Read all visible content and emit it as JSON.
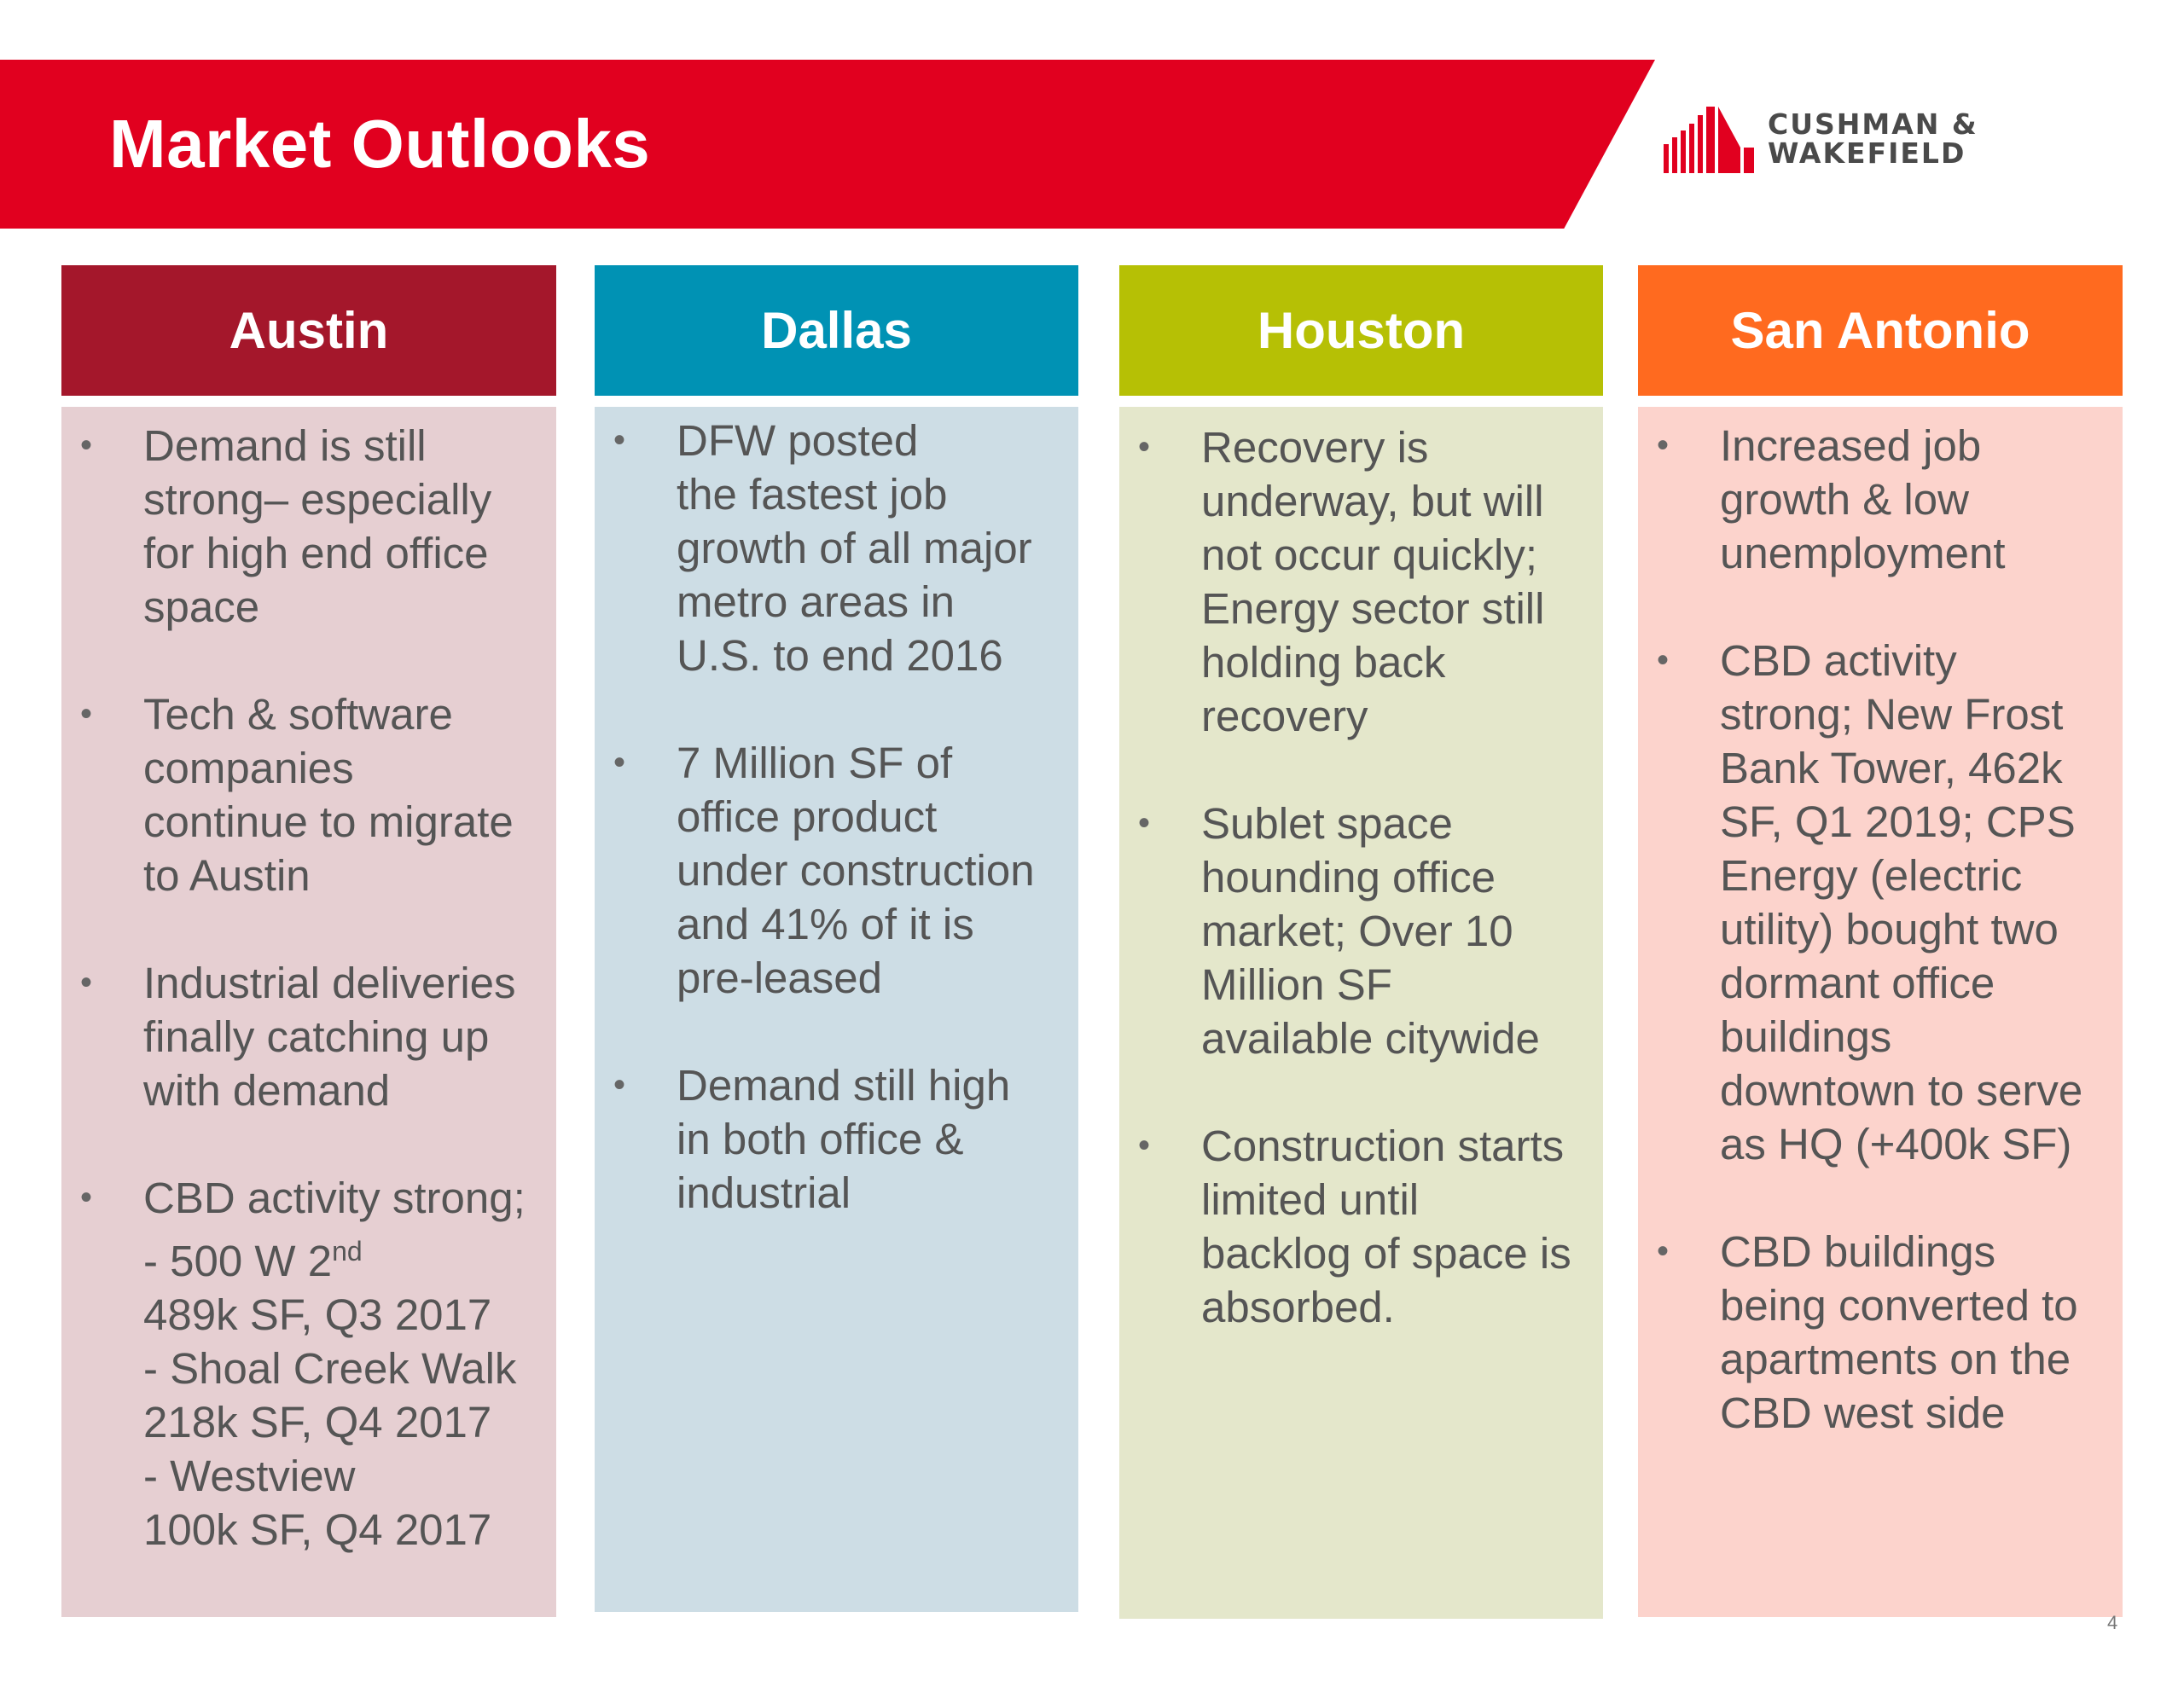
{
  "header": {
    "title": "Market Outlooks",
    "brand_color": "#e1001f"
  },
  "logo": {
    "line1": "CUSHMAN &",
    "line2": "WAKEFIELD",
    "icon": "building-bars-icon"
  },
  "columns": [
    {
      "title": "Austin",
      "header_color": "#a4172b",
      "body_color": "#e6cfd2",
      "bullets": [
        "Demand is still\nstrong– especially\nfor high end office\nspace",
        "Tech & software\ncompanies\ncontinue to migrate\nto Austin",
        "Industrial deliveries\nfinally catching up\nwith demand",
        "CBD activity strong;\n- 500 W 2nd\n489k SF, Q3 2017\n- Shoal Creek Walk\n218k SF, Q4 2017\n- Westview\n100k SF, Q4 2017"
      ]
    },
    {
      "title": "Dallas",
      "header_color": "#0092b4",
      "body_color": "#cddde5",
      "bullets": [
        "DFW posted\nthe fastest job\ngrowth of all major\nmetro areas in\nU.S. to end 2016",
        "7 Million SF of\noffice product\nunder construction\nand 41% of it is\npre-leased",
        "Demand still high\nin both office &\nindustrial"
      ]
    },
    {
      "title": "Houston",
      "header_color": "#b6c005",
      "body_color": "#e4e7cb",
      "bullets": [
        "Recovery is\nunderway, but will\nnot occur quickly;\nEnergy sector still\nholding back\nrecovery",
        "Sublet space\nhounding office\nmarket; Over 10\nMillion SF\navailable citywide",
        "Construction starts\nlimited until\nbacklog of space is\nabsorbed."
      ]
    },
    {
      "title": "San Antonio",
      "header_color": "#ff6a1f",
      "body_color": "#fcd3cc",
      "bullets": [
        "Increased job\ngrowth & low\nunemployment",
        "CBD activity\nstrong; New Frost\nBank Tower, 462k\nSF, Q1 2019; CPS\nEnergy (electric\nutility) bought two\ndormant office\nbuildings\ndowntown to serve\nas HQ (+400k SF)",
        "CBD buildings\nbeing converted to\napartments on the\nCBD west side"
      ]
    }
  ],
  "page_number": "4"
}
